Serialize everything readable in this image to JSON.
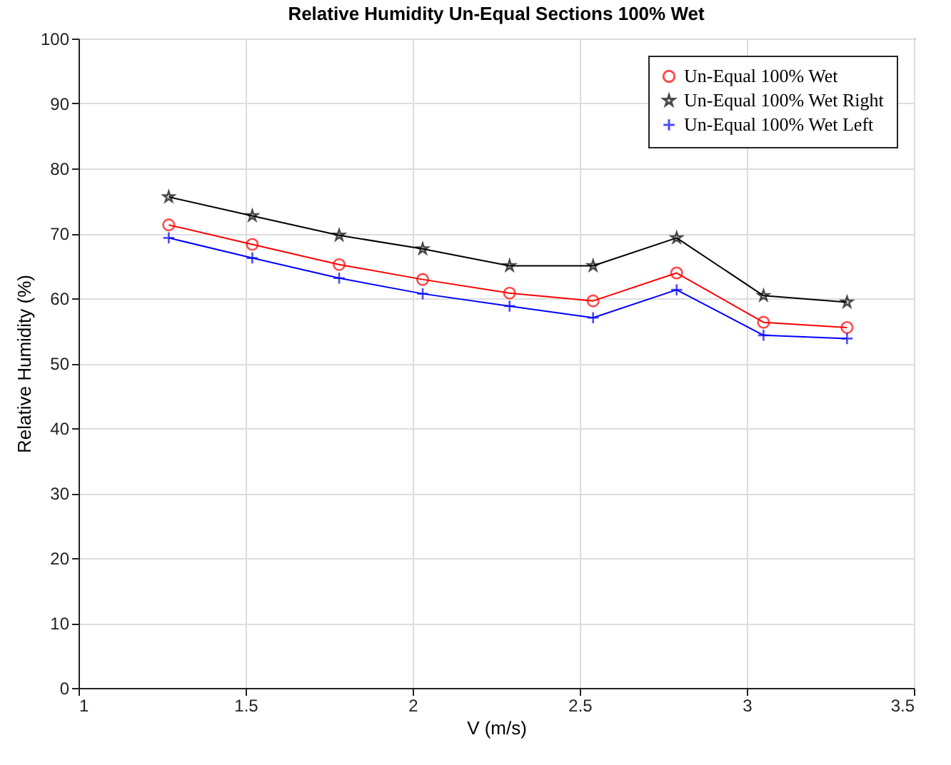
{
  "chart_data": {
    "type": "line",
    "title": "Relative Humidity Un-Equal Sections 100% Wet",
    "xlabel": "V (m/s)",
    "ylabel": "Relative Humidity (%)",
    "x": [
      1.27,
      1.52,
      1.78,
      2.03,
      2.29,
      2.54,
      2.79,
      3.05,
      3.3
    ],
    "series": [
      {
        "name": "Un-Equal 100% Wet",
        "color": "#ff0000",
        "marker": "circle",
        "values": [
          71.3,
          68.3,
          65.2,
          62.9,
          60.8,
          59.6,
          63.9,
          56.3,
          55.5
        ]
      },
      {
        "name": "Un-Equal 100% Wet Right",
        "color": "#000000",
        "marker": "star",
        "values": [
          75.6,
          72.7,
          69.7,
          67.6,
          65.0,
          65.0,
          69.3,
          60.4,
          59.4
        ]
      },
      {
        "name": "Un-Equal 100% Wet Left",
        "color": "#0000ff",
        "marker": "cross",
        "values": [
          69.3,
          66.2,
          63.1,
          60.7,
          58.8,
          57.0,
          61.3,
          54.3,
          53.8
        ]
      }
    ],
    "xlim": [
      1,
      3.5
    ],
    "xticks": [
      1,
      1.5,
      2,
      2.5,
      3,
      3.5
    ],
    "ylim": [
      0,
      100
    ],
    "yticks": [
      0,
      10,
      20,
      30,
      40,
      50,
      60,
      70,
      80,
      90,
      100
    ],
    "grid": true,
    "legend": "top right"
  }
}
